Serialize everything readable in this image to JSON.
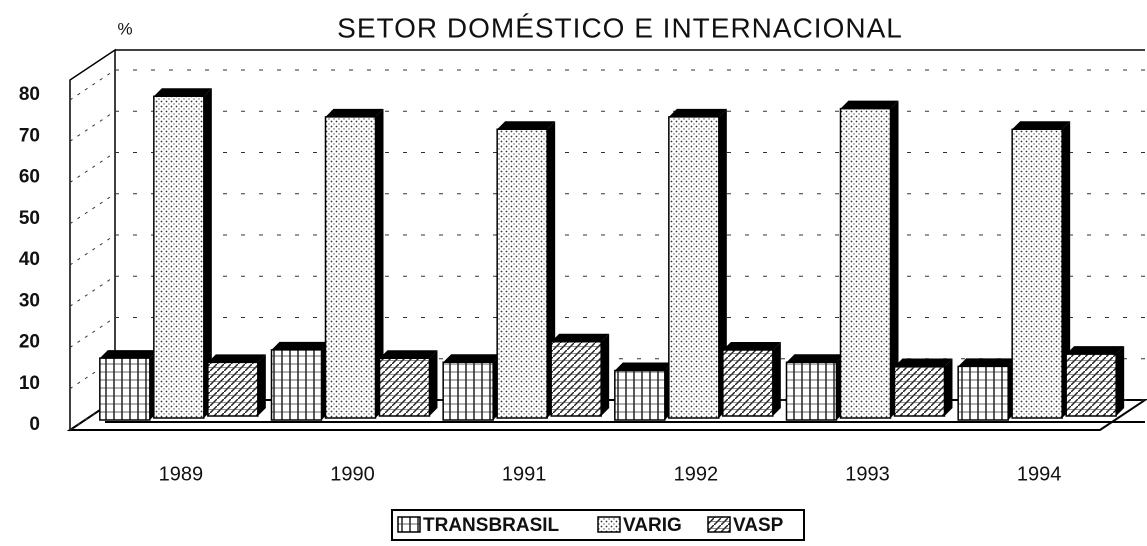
{
  "chart_data": {
    "type": "bar3d",
    "title": "SETOR DOMÉSTICO E INTERNACIONAL",
    "y_label": "%",
    "categories": [
      "1989",
      "1990",
      "1991",
      "1992",
      "1993",
      "1994"
    ],
    "series": [
      {
        "name": "TRANSBRASIL",
        "color": "#ffffff",
        "values": [
          15,
          17,
          14,
          12,
          14,
          13
        ]
      },
      {
        "name": "VARIG",
        "color": "#ffffff",
        "values": [
          78,
          73,
          70,
          73,
          75,
          70
        ]
      },
      {
        "name": "VASP",
        "color": "#ffffff",
        "values": [
          13,
          14,
          18,
          16,
          12,
          15
        ]
      }
    ],
    "ylim": [
      0,
      80
    ],
    "yticks": [
      0,
      10,
      20,
      30,
      40,
      50,
      60,
      70,
      80
    ],
    "grid": true,
    "legend": "bottom"
  }
}
